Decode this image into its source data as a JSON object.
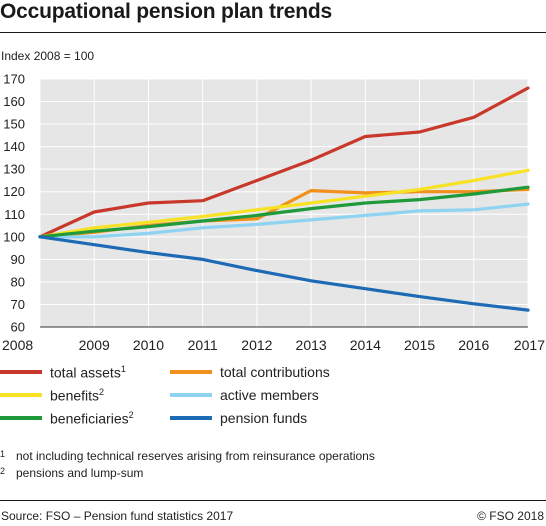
{
  "title": "Occupational pension plan trends",
  "unit_label": "Index 2008 = 100",
  "chart_data": {
    "type": "line",
    "x": [
      "2008",
      "2009",
      "2010",
      "2011",
      "2012",
      "2013",
      "2014",
      "2015",
      "2016",
      "2017"
    ],
    "ylim": [
      60,
      170
    ],
    "yticks": [
      60,
      70,
      80,
      90,
      100,
      110,
      120,
      130,
      140,
      150,
      160,
      170
    ],
    "grid": true,
    "series": [
      {
        "name": "total assets",
        "note": "1",
        "color": "#c8392b",
        "values": [
          100,
          111,
          115,
          116,
          125,
          134,
          144.5,
          146.5,
          153,
          166
        ]
      },
      {
        "name": "total contributions",
        "note": "",
        "color": "#f1901b",
        "values": [
          100,
          102,
          105,
          107,
          108,
          120.5,
          119.5,
          120,
          120,
          121
        ]
      },
      {
        "name": "benefits",
        "note": "2",
        "color": "#f7e225",
        "values": [
          100,
          104,
          106.5,
          109,
          112,
          115,
          118,
          121,
          125,
          129.5
        ]
      },
      {
        "name": "active members",
        "note": "",
        "color": "#8fd3f2",
        "values": [
          100,
          100,
          101.5,
          104,
          105.5,
          107.5,
          109.5,
          111.5,
          112,
          114.5
        ]
      },
      {
        "name": "beneficiaries",
        "note": "2",
        "color": "#1f9a3a",
        "values": [
          100,
          102.5,
          104.5,
          107,
          109.5,
          112.5,
          115,
          116.5,
          119,
          122
        ]
      },
      {
        "name": "pension funds",
        "note": "",
        "color": "#1d6ab5",
        "values": [
          100,
          96.5,
          93,
          90,
          85,
          80.5,
          77,
          73.5,
          70.3,
          67.5
        ]
      }
    ]
  },
  "legend": {
    "left": [
      {
        "label": "total assets",
        "sup": "1",
        "color": "#c8392b"
      },
      {
        "label": "benefits",
        "sup": "2",
        "color": "#f7e225"
      },
      {
        "label": "beneficiaries",
        "sup": "2",
        "color": "#1f9a3a"
      }
    ],
    "right": [
      {
        "label": "total contributions",
        "sup": "",
        "color": "#f1901b"
      },
      {
        "label": "active members",
        "sup": "",
        "color": "#8fd3f2"
      },
      {
        "label": "pension funds",
        "sup": "",
        "color": "#1d6ab5"
      }
    ]
  },
  "notes": [
    {
      "num": "1",
      "text": "not including technical reserves arising from reinsurance operations"
    },
    {
      "num": "2",
      "text": "pensions and lump-sum"
    }
  ],
  "source": "Source: FSO – Pension fund statistics 2017",
  "copyright": "© FSO 2018"
}
